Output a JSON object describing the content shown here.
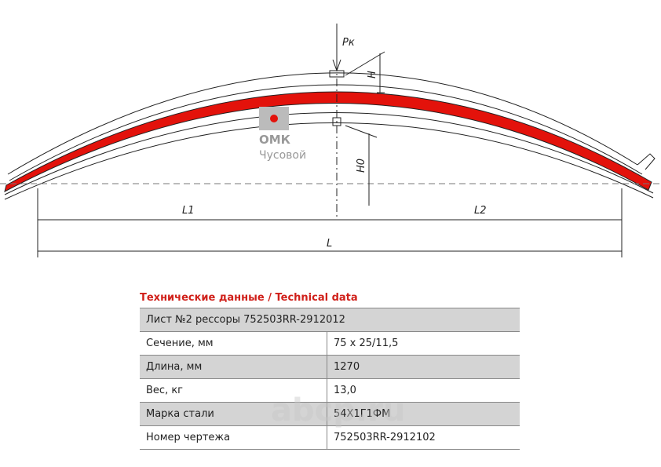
{
  "drawing": {
    "load_label": "Pк",
    "height_label": "H",
    "free_height_label": "H0",
    "left_length_label": "L1",
    "right_length_label": "L2",
    "length_label": "L"
  },
  "logo": {
    "brand": "ОМК",
    "city": "Чусовой"
  },
  "table": {
    "title": "Технические данные / Technical data",
    "header": "Лист №2 рессоры 752503RR-2912012",
    "rows": [
      [
        "Сечение, мм",
        "75 x 25/11,5"
      ],
      [
        "Длина, мм",
        "1270"
      ],
      [
        "Вес, кг",
        "13,0"
      ],
      [
        "Марка стали",
        "54Х1Г1ФМ"
      ],
      [
        "Номер чертежа",
        "752503RR-2912102"
      ]
    ]
  },
  "watermark": "abcp.ru"
}
